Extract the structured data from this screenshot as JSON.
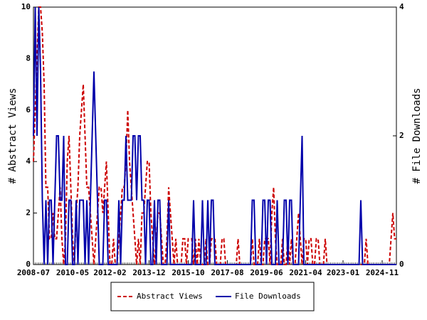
{
  "chart_data": {
    "type": "line",
    "y_label": "# Abstract Views",
    "y2_label": "# File Downloads",
    "x": [
      "2008-07",
      "2008-08",
      "2008-09",
      "2008-10",
      "2008-11",
      "2008-12",
      "2009-01",
      "2009-02",
      "2009-03",
      "2009-04",
      "2009-05",
      "2009-06",
      "2009-07",
      "2009-08",
      "2009-09",
      "2009-10",
      "2009-11",
      "2009-12",
      "2010-01",
      "2010-02",
      "2010-03",
      "2010-04",
      "2010-05",
      "2010-06",
      "2010-07",
      "2010-08",
      "2010-09",
      "2010-10",
      "2010-11",
      "2010-12",
      "2011-01",
      "2011-02",
      "2011-03",
      "2011-04",
      "2011-05",
      "2011-06",
      "2011-07",
      "2011-08",
      "2011-09",
      "2011-10",
      "2011-11",
      "2011-12",
      "2012-01",
      "2012-02",
      "2012-03",
      "2012-04",
      "2012-05",
      "2012-06",
      "2012-07",
      "2012-08",
      "2012-09",
      "2012-10",
      "2012-11",
      "2012-12",
      "2013-01",
      "2013-02",
      "2013-03",
      "2013-04",
      "2013-05",
      "2013-06",
      "2013-07",
      "2013-08",
      "2013-09",
      "2013-10",
      "2013-11",
      "2013-12",
      "2014-01",
      "2014-02",
      "2014-03",
      "2014-04",
      "2014-05",
      "2014-06",
      "2014-07",
      "2014-08",
      "2014-09",
      "2014-10",
      "2014-11",
      "2014-12",
      "2015-01",
      "2015-02",
      "2015-03",
      "2015-04",
      "2015-05",
      "2015-06",
      "2015-07",
      "2015-08",
      "2015-09",
      "2015-10",
      "2015-11",
      "2015-12",
      "2016-01",
      "2016-02",
      "2016-03",
      "2016-04",
      "2016-05",
      "2016-06",
      "2016-07",
      "2016-08",
      "2016-09",
      "2016-10",
      "2016-11",
      "2016-12",
      "2017-01",
      "2017-02",
      "2017-03",
      "2017-04",
      "2017-05",
      "2017-06",
      "2017-07",
      "2017-08",
      "2017-09",
      "2017-10",
      "2017-11",
      "2017-12",
      "2018-01",
      "2018-02",
      "2018-03",
      "2018-04",
      "2018-05",
      "2018-06",
      "2018-07",
      "2018-08",
      "2018-09",
      "2018-10",
      "2018-11",
      "2018-12",
      "2019-01",
      "2019-02",
      "2019-03",
      "2019-04",
      "2019-05",
      "2019-06",
      "2019-07",
      "2019-08",
      "2019-09",
      "2019-10",
      "2019-11",
      "2019-12",
      "2020-01",
      "2020-02",
      "2020-03",
      "2020-04",
      "2020-05",
      "2020-06",
      "2020-07",
      "2020-08",
      "2020-09",
      "2020-10",
      "2020-11",
      "2020-12",
      "2021-01",
      "2021-02",
      "2021-03",
      "2021-04",
      "2021-05",
      "2021-06",
      "2021-07",
      "2021-08",
      "2021-09",
      "2021-10",
      "2021-11",
      "2021-12",
      "2022-01",
      "2022-02",
      "2022-03",
      "2022-04",
      "2022-05",
      "2022-06",
      "2022-07",
      "2022-08",
      "2022-09",
      "2022-10",
      "2022-11",
      "2022-12",
      "2023-01",
      "2023-02",
      "2023-03",
      "2023-04",
      "2023-05",
      "2023-06",
      "2023-07",
      "2023-08",
      "2023-09",
      "2023-10",
      "2023-11",
      "2023-12",
      "2024-01",
      "2024-02",
      "2024-03",
      "2024-04",
      "2024-05",
      "2024-06",
      "2024-07",
      "2024-08",
      "2024-09",
      "2024-10",
      "2024-11",
      "2024-12",
      "2025-01",
      "2025-02",
      "2025-03",
      "2025-04",
      "2025-05",
      "2025-06",
      "2025-07"
    ],
    "series": [
      {
        "name": "Abstract Views",
        "color": "#cc0000",
        "dash": true,
        "values": [
          4,
          6,
          8,
          10,
          10,
          9,
          7,
          3,
          3,
          1,
          1,
          2,
          1,
          1,
          2,
          3,
          1,
          0,
          1,
          4,
          5,
          3,
          1,
          0,
          2,
          3,
          5,
          6,
          7,
          5,
          3,
          3,
          2,
          1,
          0,
          1,
          2,
          3,
          3,
          2,
          3,
          4,
          2,
          0,
          0,
          1,
          0,
          0,
          1,
          2,
          3,
          3,
          4,
          6,
          4,
          3,
          2,
          1,
          0,
          1,
          0,
          2,
          2,
          3,
          4,
          4,
          2,
          1,
          0,
          1,
          2,
          2,
          1,
          0,
          0,
          1,
          3,
          2,
          1,
          0,
          1,
          0,
          0,
          0,
          1,
          1,
          0,
          1,
          1,
          1,
          0,
          1,
          0,
          1,
          0,
          0,
          0,
          1,
          0,
          0,
          1,
          1,
          1,
          0,
          0,
          0,
          1,
          1,
          0,
          0,
          0,
          0,
          0,
          0,
          0,
          1,
          0,
          0,
          0,
          0,
          0,
          0,
          0,
          1,
          0,
          0,
          0,
          1,
          0,
          0,
          1,
          1,
          1,
          0,
          2,
          3,
          1,
          0,
          0,
          0,
          1,
          0,
          0,
          1,
          0,
          1,
          0,
          0,
          1,
          2,
          1,
          0,
          1,
          1,
          0,
          1,
          1,
          0,
          0,
          1,
          1,
          0,
          0,
          0,
          1,
          0,
          0,
          0,
          0,
          0,
          0,
          0,
          0,
          0,
          0,
          0,
          0,
          0,
          0,
          0,
          0,
          0,
          0,
          0,
          0,
          0,
          0,
          1,
          0,
          0,
          0,
          0,
          0,
          0,
          0,
          0,
          0,
          0,
          0,
          0,
          0,
          1,
          2,
          1,
          1
        ]
      },
      {
        "name": "File Downloads",
        "color": "#0000aa",
        "axis": "y2",
        "values": [
          2,
          4,
          2,
          4,
          3,
          1,
          0,
          1,
          0,
          1,
          1,
          0,
          1,
          2,
          2,
          1,
          1,
          2,
          0,
          0,
          1,
          1,
          0,
          0,
          1,
          0,
          1,
          1,
          1,
          0,
          1,
          0,
          1,
          2,
          3,
          2,
          1,
          0,
          0,
          0,
          1,
          1,
          0,
          0,
          0,
          0,
          0,
          0,
          1,
          0,
          1,
          1,
          2,
          1,
          1,
          1,
          2,
          2,
          1,
          2,
          2,
          1,
          1,
          0,
          1,
          1,
          0,
          0,
          1,
          0,
          1,
          1,
          0,
          0,
          0,
          0,
          1,
          0,
          0,
          0,
          0,
          0,
          0,
          0,
          0,
          0,
          0,
          0,
          0,
          0,
          1,
          0,
          0,
          0,
          0,
          1,
          0,
          0,
          1,
          0,
          1,
          1,
          0,
          0,
          0,
          0,
          0,
          0,
          0,
          0,
          0,
          0,
          0,
          0,
          0,
          0,
          0,
          0,
          0,
          0,
          0,
          0,
          0,
          1,
          1,
          0,
          0,
          0,
          0,
          1,
          1,
          0,
          1,
          1,
          0,
          0,
          0,
          1,
          0,
          0,
          0,
          1,
          1,
          0,
          1,
          1,
          0,
          0,
          0,
          0,
          1,
          2,
          0,
          0,
          0,
          0,
          0,
          0,
          0,
          0,
          0,
          0,
          0,
          0,
          0,
          0,
          0,
          0,
          0,
          0,
          0,
          0,
          0,
          0,
          0,
          0,
          0,
          0,
          0,
          0,
          0,
          0,
          0,
          0,
          1,
          0,
          0,
          0,
          0,
          0,
          0,
          0,
          0,
          0,
          0,
          0,
          0,
          0,
          0,
          0,
          0,
          0,
          0,
          0,
          0
        ]
      }
    ],
    "xticks": [
      "2008-07",
      "2010-05",
      "2012-02",
      "2013-12",
      "2015-10",
      "2017-08",
      "2019-06",
      "2021-04",
      "2023-01",
      "2024-11"
    ],
    "ylim": [
      0,
      10
    ],
    "yticks": [
      0,
      2,
      4,
      6,
      8,
      10
    ],
    "y2lim": [
      0,
      4
    ],
    "y2ticks": [
      0,
      2,
      4
    ],
    "legend": "bottom"
  }
}
